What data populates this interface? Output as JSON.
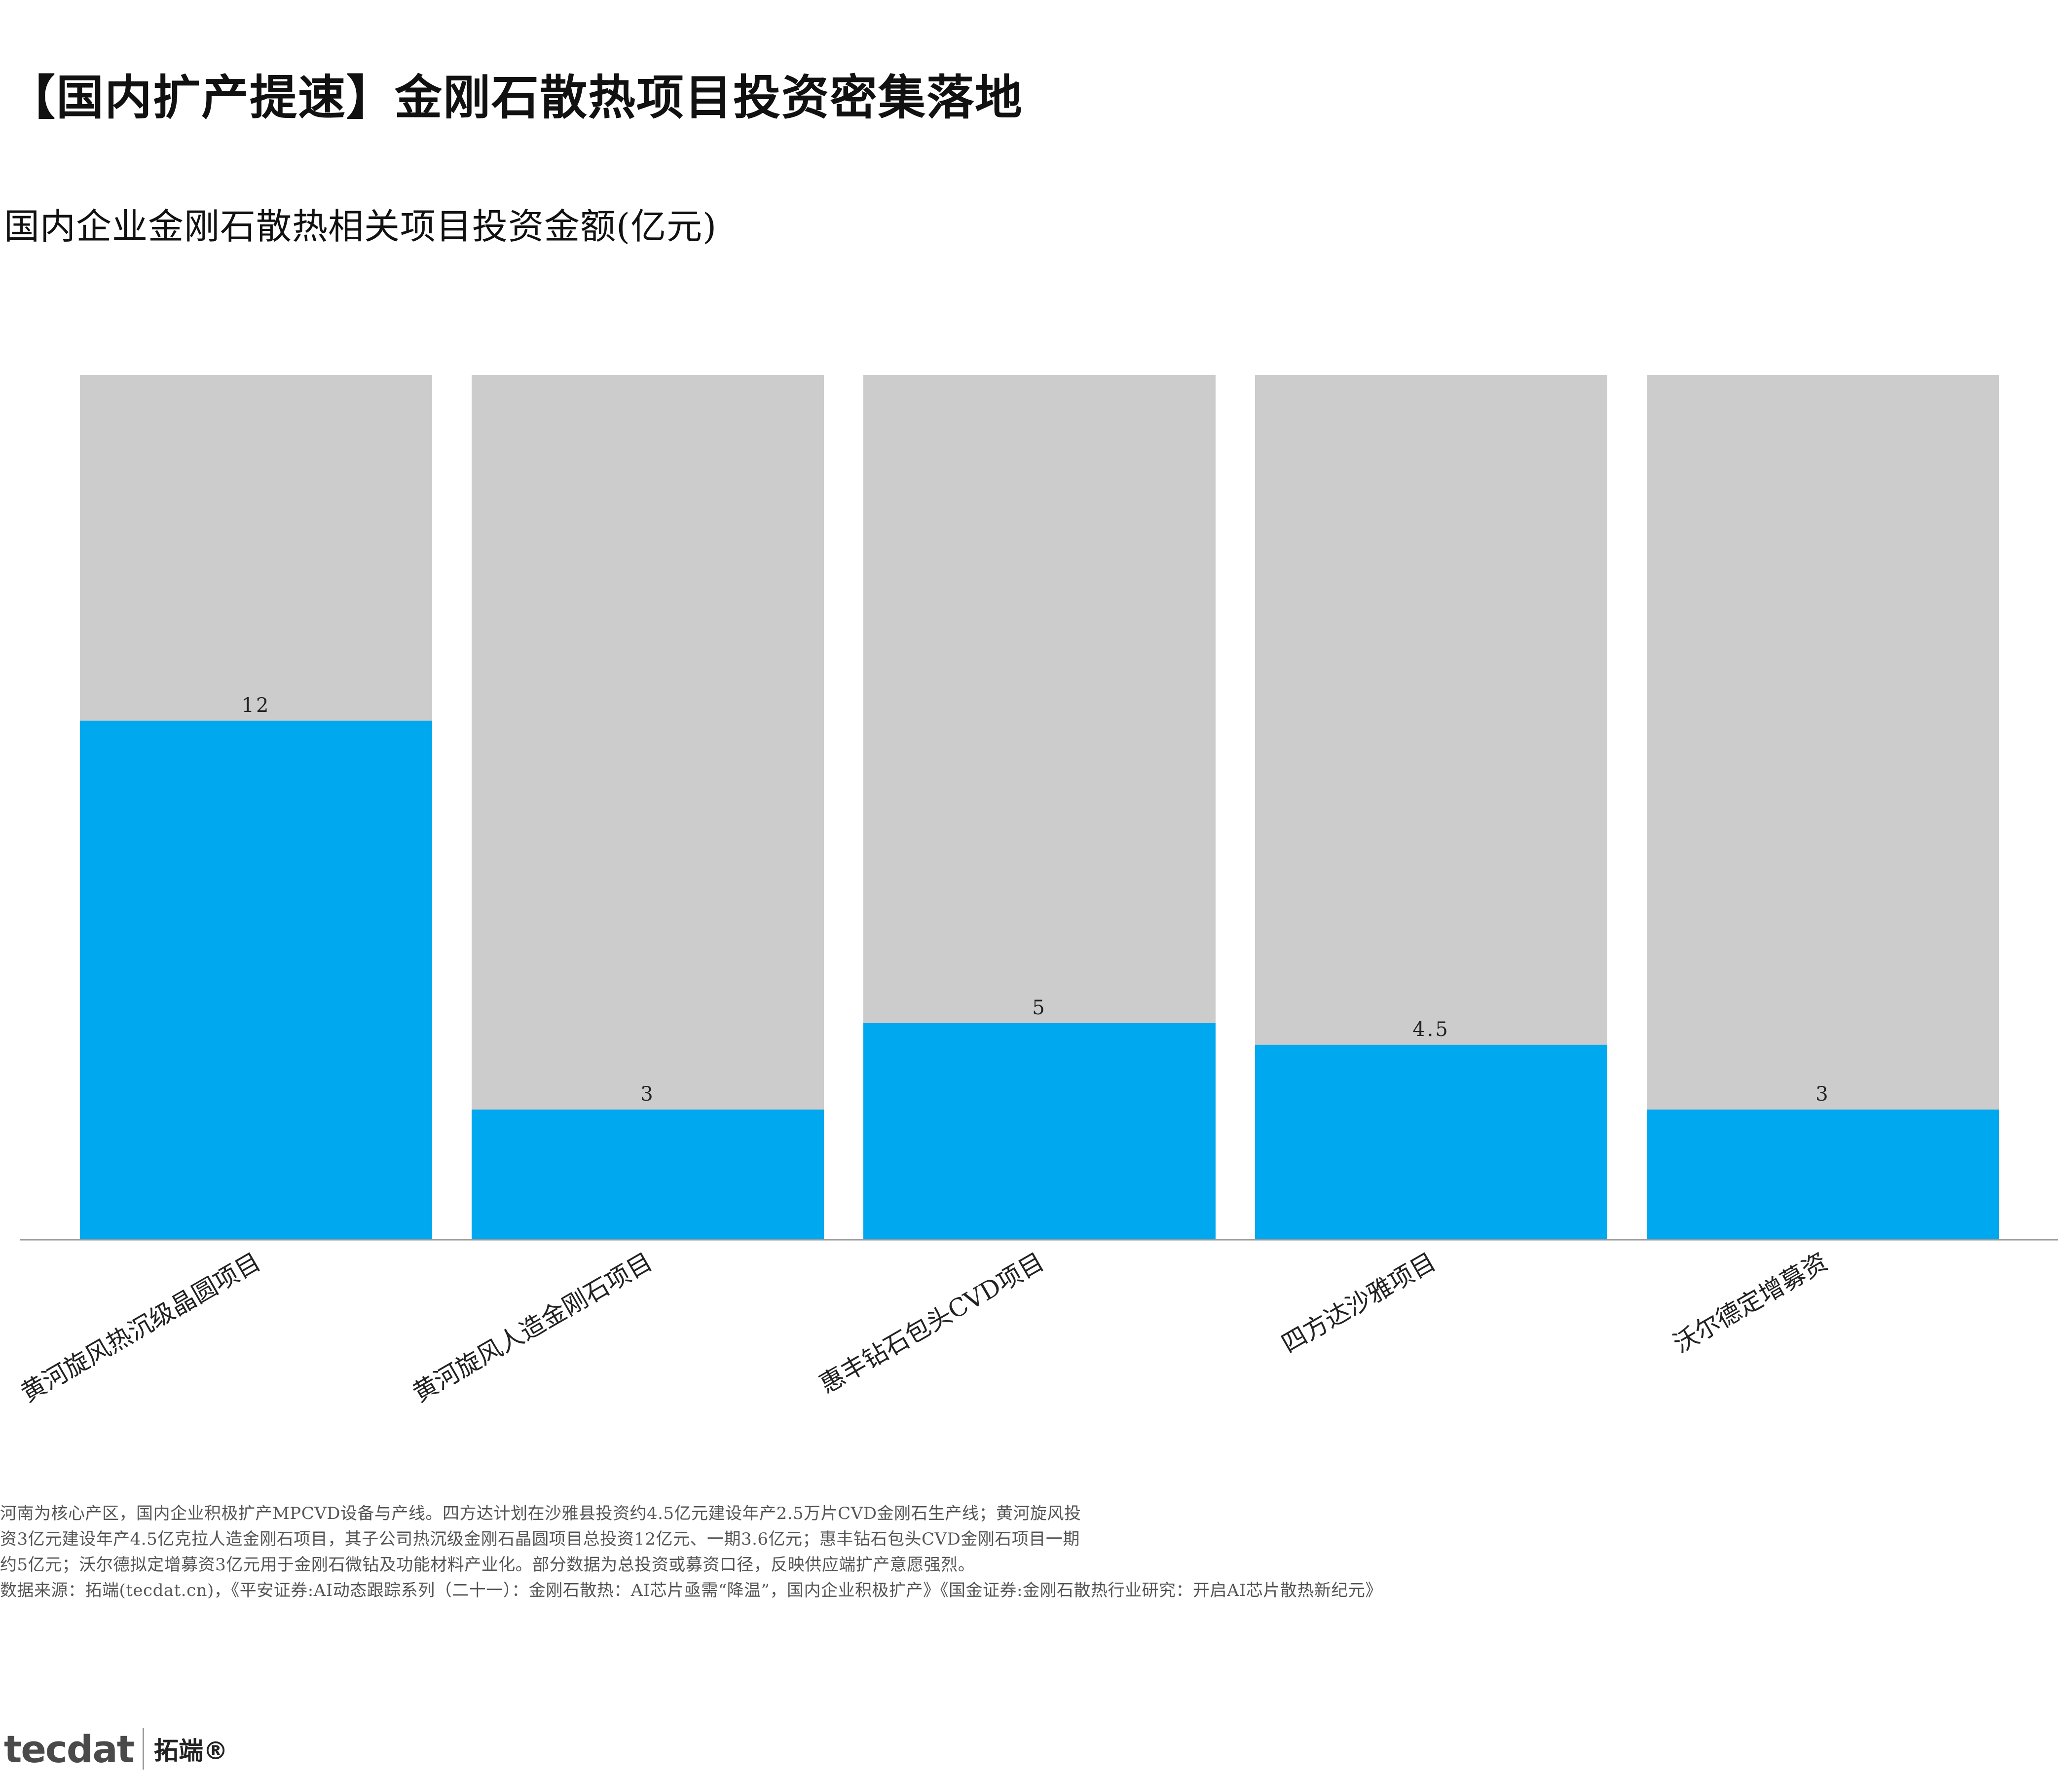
{
  "headline": "【国内扩产提速】金刚石散热项目投资密集落地",
  "chart_data": {
    "type": "bar",
    "title": "国内企业金刚石散热相关项目投资金额(亿元)",
    "categories": [
      "黄河旋风热沉级晶圆项目",
      "黄河旋风人造金刚石项目",
      "惠丰钻石包头CVD项目",
      "四方达沙雅项目",
      "沃尔德定增募资"
    ],
    "values": [
      12,
      3,
      5,
      4.5,
      3
    ],
    "value_labels": [
      "12",
      "3",
      "5",
      "4.5",
      "3"
    ],
    "ylim": [
      0,
      20
    ],
    "xlabel": "",
    "ylabel": "",
    "grid": false,
    "legend": "none",
    "colors": {
      "bar": "#00A8F0",
      "background_bar": "#CCCCCC",
      "axis": "#999999",
      "label": "#222222"
    }
  },
  "notes": [
    "河南为核心产区，国内企业积极扩产MPCVD设备与产线。四方达计划在沙雅县投资约4.5亿元建设年产2.5万片CVD金刚石生产线；黄河旋风投",
    "资3亿元建设年产4.5亿克拉人造金刚石项目，其子公司热沉级金刚石晶圆项目总投资12亿元、一期3.6亿元；惠丰钻石包头CVD金刚石项目一期",
    "约5亿元；沃尔德拟定增募资3亿元用于金刚石微钻及功能材料产业化。部分数据为总投资或募资口径，反映供应端扩产意愿强烈。"
  ],
  "source": "数据来源：拓端(tecdat.cn)，《平安证券:AI动态跟踪系列（二十一）：金刚石散热：AI芯片亟需“降温”，国内企业积极扩产》《国金证券:金刚石散热行业研究：开启AI芯片散热新纪元》",
  "logo": {
    "text": "tecdat",
    "cn": "拓端®"
  }
}
